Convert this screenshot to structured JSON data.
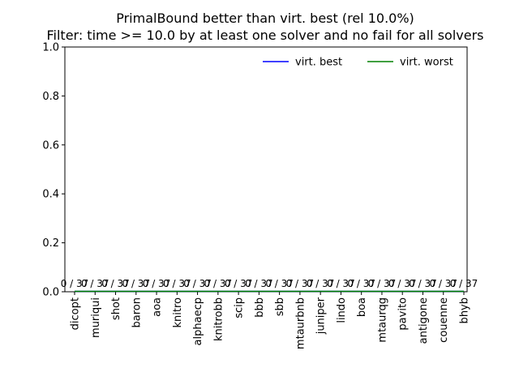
{
  "chart_data": {
    "type": "line",
    "title": "PrimalBound better than virt. best (rel 10.0%)",
    "subtitle": "Filter: time >= 10.0 by at least one solver and no fail for all solvers",
    "categories": [
      "dicopt",
      "muriqui",
      "shot",
      "baron",
      "aoa",
      "knitro",
      "alphaecp",
      "knitrobb",
      "scip",
      "bbb",
      "sbb",
      "mtaurbnb",
      "juniper",
      "lindo",
      "boa",
      "mtaurqg",
      "pavito",
      "antigone",
      "couenne",
      "bhyb"
    ],
    "series": [
      {
        "name": "virt. best",
        "color": "#0000ff",
        "values": [
          0,
          0,
          0,
          0,
          0,
          0,
          0,
          0,
          0,
          0,
          0,
          0,
          0,
          0,
          0,
          0,
          0,
          0,
          0,
          0
        ]
      },
      {
        "name": "virt. worst",
        "color": "#008000",
        "values": [
          0,
          0,
          0,
          0,
          0,
          0,
          0,
          0,
          0,
          0,
          0,
          0,
          0,
          0,
          0,
          0,
          0,
          0,
          0,
          0
        ]
      }
    ],
    "bar_labels": [
      "0 / 37",
      "0 / 37",
      "0 / 37",
      "0 / 37",
      "0 / 37",
      "0 / 37",
      "0 / 37",
      "0 / 37",
      "0 / 37",
      "0 / 37",
      "0 / 37",
      "0 / 37",
      "0 / 37",
      "0 / 37",
      "0 / 37",
      "0 / 37",
      "0 / 37",
      "0 / 37",
      "0 / 37",
      "0 / 37"
    ],
    "ylim": [
      0,
      1.0
    ],
    "yticks": [
      "0.0",
      "0.2",
      "0.4",
      "0.6",
      "0.8",
      "1.0"
    ],
    "grid": false,
    "legend_position": "top-right"
  }
}
